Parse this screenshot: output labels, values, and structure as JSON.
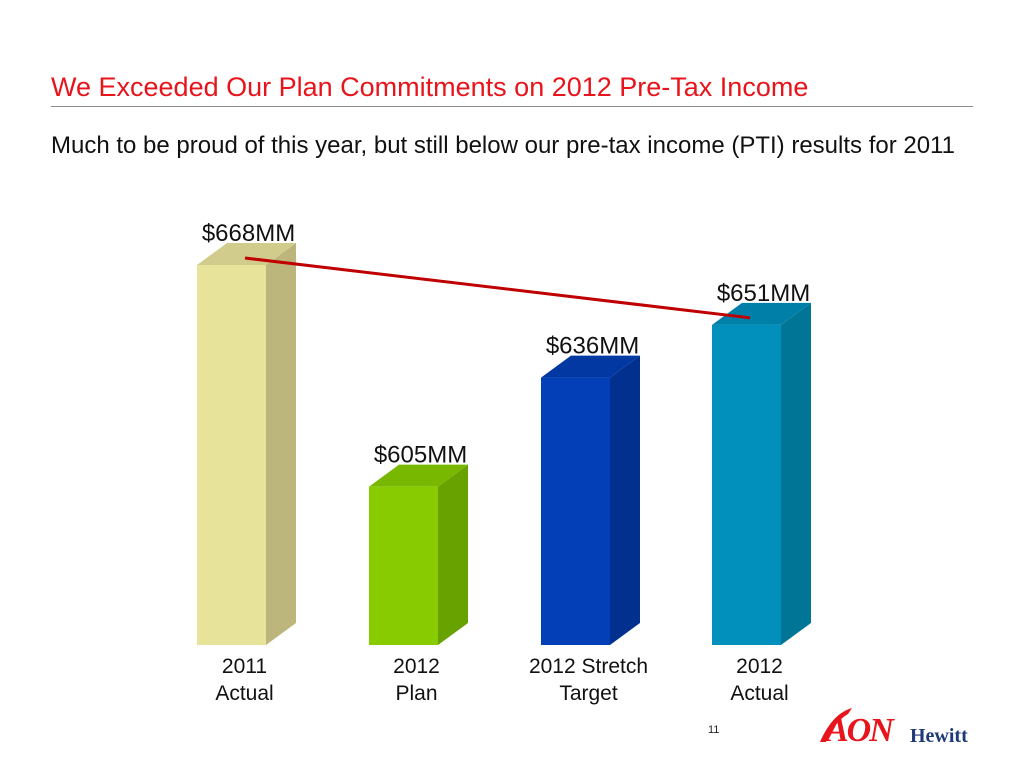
{
  "slide": {
    "title": "We Exceeded Our Plan Commitments on 2012 Pre-Tax Income",
    "subtitle": "Much to be proud of this year, but still below our pre-tax income (PTI)  results for 2011",
    "page_number": "11"
  },
  "brand": {
    "logo_primary": "AON",
    "logo_secondary": "Hewitt",
    "logo_color": "#e8141c",
    "logo_secondary_color": "#1e3a78",
    "title_color": "#e8141c"
  },
  "chart_data": {
    "type": "bar",
    "style": "3d-columns",
    "categories": [
      [
        "2011",
        "Actual"
      ],
      [
        "2012",
        "Plan"
      ],
      [
        "2012 Stretch",
        "Target"
      ],
      [
        "2012",
        "Actual"
      ]
    ],
    "values": [
      668,
      605,
      636,
      651
    ],
    "data_labels": [
      "$668MM",
      "$605MM",
      "$636MM",
      "$651MM"
    ],
    "bar_colors": [
      {
        "front": "#e8e39a",
        "side": "#bcb67c",
        "top": "#d2cc8c"
      },
      {
        "front": "#88cc00",
        "side": "#68a200",
        "top": "#78b800"
      },
      {
        "front": "#0340b8",
        "side": "#02308e",
        "top": "#0238a2"
      },
      {
        "front": "#0090bb",
        "side": "#007596",
        "top": "#0080a8"
      }
    ],
    "trend_line": {
      "from_category": 0,
      "to_category": 3,
      "color": "#c00000"
    },
    "ylim": [
      580,
      680
    ],
    "title": "",
    "xlabel": "",
    "ylabel": "",
    "grid": false,
    "legend": "none"
  }
}
